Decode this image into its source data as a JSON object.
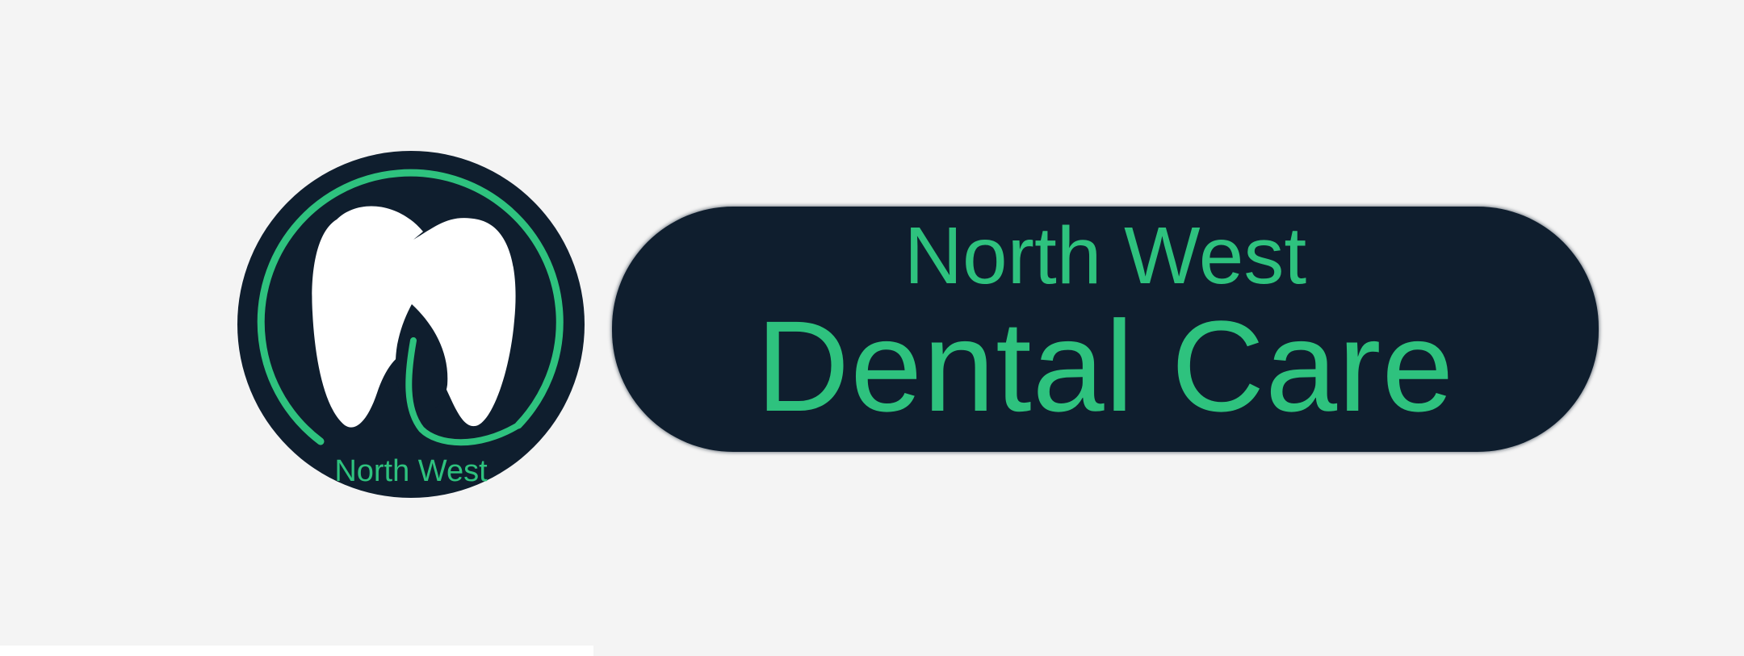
{
  "logo": {
    "emblem_text": "North West",
    "banner_line1": "North West",
    "banner_line2": "Dental Care",
    "icon": "tooth-leaf-icon"
  },
  "colors": {
    "background": "#f4f4f4",
    "navy": "#0f1e2e",
    "green": "#2ec27e",
    "white": "#ffffff"
  }
}
